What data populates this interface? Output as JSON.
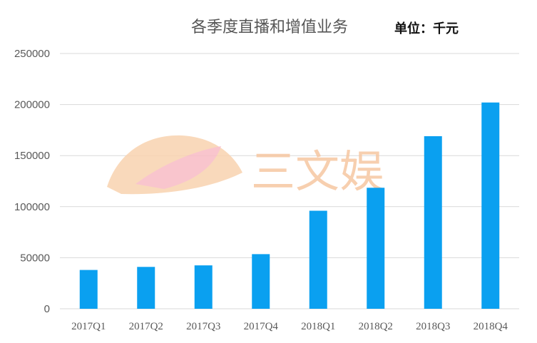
{
  "chart_data": {
    "type": "bar",
    "title": "各季度直播和增值业务",
    "unit_label": "单位：千元",
    "categories": [
      "2017Q1",
      "2017Q2",
      "2017Q3",
      "2017Q4",
      "2018Q1",
      "2018Q2",
      "2018Q3",
      "2018Q4"
    ],
    "values": [
      38000,
      41000,
      42500,
      53500,
      96000,
      118500,
      169000,
      202000
    ],
    "ylim": [
      0,
      250000
    ],
    "yticks": [
      "0",
      "50000",
      "100000",
      "150000",
      "200000",
      "250000"
    ],
    "grid": true,
    "bar_color": "#0aa0f0"
  },
  "watermark": {
    "text": "三文娱",
    "color": "#f6c7a2"
  }
}
